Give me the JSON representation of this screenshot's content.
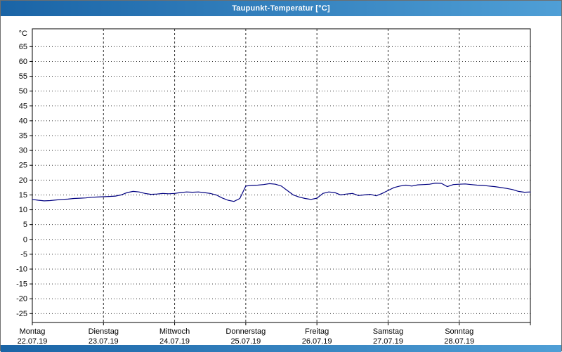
{
  "window": {
    "title": "Taupunkt-Temperatur [°C]"
  },
  "colors": {
    "titlebar_gradient_start": "#1a64a6",
    "titlebar_gradient_end": "#4f9fd6",
    "line": "#000080",
    "grid": "#333333",
    "plot_border": "#000000",
    "text": "#000000",
    "plot_background": "#ffffff"
  },
  "chart_data": {
    "type": "line",
    "title": "Taupunkt-Temperatur [°C]",
    "ylabel": "°C",
    "y_unit_label": "°C",
    "ylim": [
      -28,
      71
    ],
    "y_ticks": [
      65,
      60,
      55,
      50,
      45,
      40,
      35,
      30,
      25,
      20,
      15,
      10,
      5,
      0,
      -5,
      -10,
      -15,
      -20,
      -25
    ],
    "x_hours_total": 168,
    "x_days": [
      {
        "name": "Montag",
        "date": "22.07.19"
      },
      {
        "name": "Dienstag",
        "date": "23.07.19"
      },
      {
        "name": "Mittwoch",
        "date": "24.07.19"
      },
      {
        "name": "Donnerstag",
        "date": "25.07.19"
      },
      {
        "name": "Freitag",
        "date": "26.07.19"
      },
      {
        "name": "Samstag",
        "date": "27.07.19"
      },
      {
        "name": "Sonntag",
        "date": "28.07.19"
      }
    ],
    "series": [
      {
        "name": "Taupunkt-Temperatur",
        "color": "#000080",
        "x_hours": [
          0,
          2,
          4,
          6,
          8,
          10,
          12,
          14,
          16,
          18,
          20,
          22,
          24,
          26,
          28,
          30,
          32,
          34,
          36,
          38,
          40,
          42,
          44,
          46,
          48,
          50,
          52,
          54,
          56,
          58,
          60,
          62,
          64,
          66,
          68,
          70,
          72,
          74,
          76,
          78,
          80,
          82,
          84,
          86,
          88,
          90,
          92,
          94,
          96,
          98,
          100,
          102,
          104,
          106,
          108,
          110,
          112,
          114,
          116,
          118,
          120,
          122,
          124,
          126,
          128,
          130,
          132,
          134,
          136,
          138,
          140,
          142,
          144,
          146,
          148,
          150,
          152,
          154,
          156,
          158,
          160,
          162,
          164,
          166,
          168
        ],
        "values": [
          13.5,
          13.2,
          13.0,
          13.1,
          13.3,
          13.5,
          13.6,
          13.8,
          13.9,
          14.0,
          14.2,
          14.3,
          14.4,
          14.5,
          14.6,
          15.0,
          15.8,
          16.2,
          16.0,
          15.5,
          15.2,
          15.3,
          15.5,
          15.4,
          15.5,
          15.8,
          16.0,
          15.9,
          16.0,
          15.8,
          15.5,
          15.0,
          14.0,
          13.2,
          12.8,
          13.8,
          18.0,
          18.2,
          18.3,
          18.5,
          18.8,
          18.6,
          18.0,
          16.5,
          15.0,
          14.3,
          13.8,
          13.5,
          13.9,
          15.5,
          16.0,
          15.8,
          15.0,
          15.3,
          15.5,
          14.8,
          15.0,
          15.2,
          14.7,
          15.5,
          16.5,
          17.5,
          18.0,
          18.3,
          18.0,
          18.4,
          18.5,
          18.6,
          19.0,
          18.9,
          17.8,
          18.5,
          18.6,
          18.7,
          18.5,
          18.3,
          18.2,
          18.0,
          17.8,
          17.5,
          17.2,
          16.8,
          16.2,
          15.9,
          16.0
        ]
      }
    ],
    "grid": "on",
    "legend": "none"
  }
}
